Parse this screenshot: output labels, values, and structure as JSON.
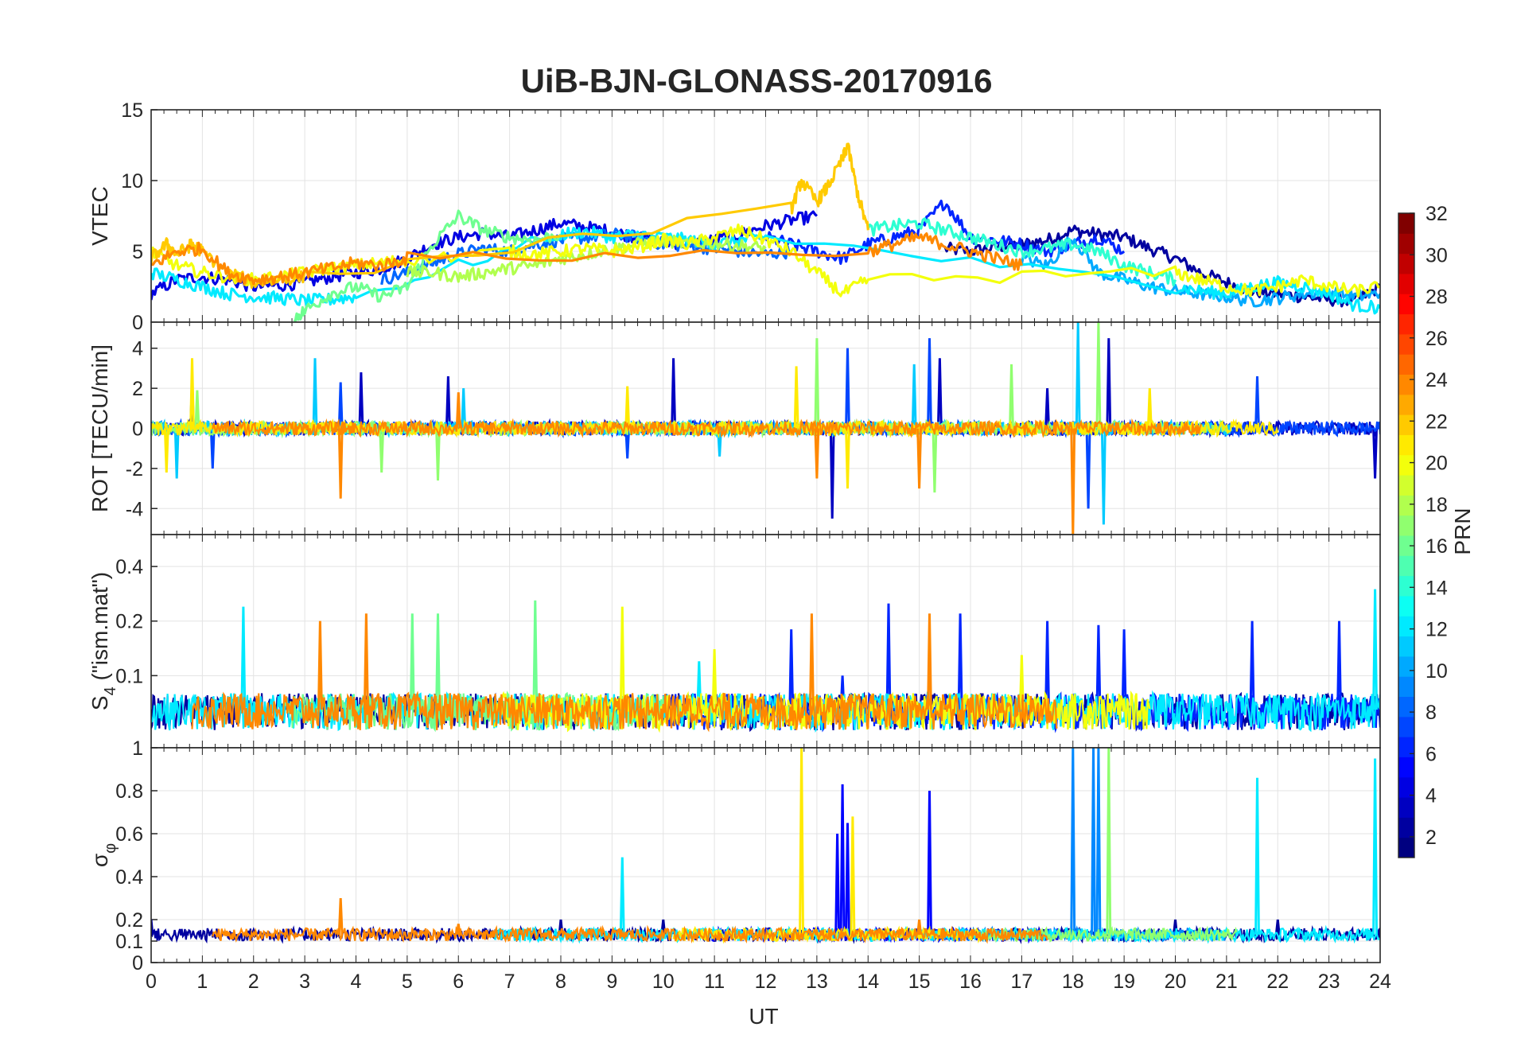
{
  "figure": {
    "title": "UiB-BJN-GLONASS-20170916",
    "xlabel": "UT",
    "x_ticks": [
      "0",
      "1",
      "2",
      "3",
      "4",
      "5",
      "6",
      "7",
      "8",
      "9",
      "10",
      "11",
      "12",
      "13",
      "14",
      "15",
      "16",
      "17",
      "18",
      "19",
      "20",
      "21",
      "22",
      "23",
      "24"
    ]
  },
  "colorbar": {
    "label": "PRN",
    "range": [
      1,
      32
    ],
    "ticks": [
      "2",
      "4",
      "6",
      "8",
      "10",
      "12",
      "14",
      "16",
      "18",
      "20",
      "22",
      "24",
      "26",
      "28",
      "30",
      "32"
    ],
    "colormap": "jet",
    "levels": 32
  },
  "chart_data": [
    {
      "type": "line",
      "panel": "vtec",
      "ylabel": "VTEC",
      "xlim": [
        0,
        24
      ],
      "ylim": [
        0,
        15
      ],
      "y_ticks": [
        "0",
        "5",
        "10",
        "15"
      ],
      "grid": true,
      "note_series": "one line per GLONASS PRN, colored by colorbar",
      "series": [
        {
          "prn": 2,
          "x": [
            15.5,
            16,
            16.5,
            17,
            17.5,
            18,
            18.5,
            19,
            19.5,
            20,
            20.5,
            21,
            21.5,
            22,
            22.5,
            23,
            23.5,
            24
          ],
          "y": [
            5.2,
            5.0,
            5.3,
            5.5,
            5.8,
            6.5,
            6.2,
            6.0,
            5.2,
            4.5,
            3.5,
            2.8,
            2.2,
            2.0,
            1.8,
            1.6,
            1.5,
            2.5
          ]
        },
        {
          "prn": 4,
          "x": [
            0,
            0.5,
            1,
            1.5,
            2,
            2.5,
            3,
            3.5,
            4,
            4.5,
            5,
            5.5,
            6,
            6.5,
            7,
            7.5,
            8,
            8.5,
            9,
            9.5,
            10,
            10.5,
            11,
            11.5,
            12,
            12.5,
            13
          ],
          "y": [
            2.0,
            3.0,
            3.2,
            3.0,
            2.5,
            2.6,
            2.8,
            3.2,
            3.5,
            3.8,
            4.5,
            5.5,
            6.0,
            6.3,
            6.0,
            6.5,
            7.0,
            6.7,
            6.4,
            6.0,
            5.7,
            5.5,
            5.8,
            6.2,
            6.8,
            7.2,
            7.5
          ]
        },
        {
          "prn": 6,
          "x": [
            12,
            12.5,
            13,
            13.5,
            14,
            14.5,
            15,
            15.5,
            16,
            16.5,
            17,
            17.5,
            18,
            18.5,
            19
          ],
          "y": [
            6.0,
            5.5,
            5.0,
            4.5,
            5.5,
            6.0,
            6.5,
            8.5,
            6.0,
            5.8,
            5.5,
            5.0,
            5.5,
            6.0,
            5.0
          ]
        },
        {
          "prn": 8,
          "x": [
            4.5,
            5,
            5.5,
            6,
            6.5,
            7,
            7.5,
            8,
            8.5,
            9,
            9.5,
            10,
            10.5,
            11,
            11.5,
            12,
            12.5
          ],
          "y": [
            3.0,
            3.5,
            4.2,
            4.8,
            5.2,
            5.0,
            5.5,
            5.8,
            6.0,
            6.2,
            6.0,
            5.5,
            5.4,
            5.2,
            5.0,
            4.8,
            5.0
          ]
        },
        {
          "prn": 10,
          "x": [
            17,
            17.5,
            18,
            18.5,
            19,
            19.5,
            20,
            20.5,
            21,
            21.5,
            22,
            22.5,
            23,
            23.5,
            24
          ],
          "y": [
            4.5,
            4.0,
            6.0,
            3.5,
            3.0,
            2.5,
            2.2,
            2.0,
            1.8,
            1.5,
            1.7,
            2.0,
            2.2,
            1.8,
            2.0
          ]
        },
        {
          "prn": 12,
          "x": [
            0,
            0.5,
            1,
            1.5,
            2,
            2.5,
            3,
            3.5,
            4,
            8,
            8.5,
            9,
            9.5,
            10,
            10.5,
            11,
            11.5,
            12,
            20,
            20.5,
            21,
            21.5,
            22,
            22.5,
            23,
            23.5,
            24
          ],
          "y": [
            3.5,
            3.0,
            2.5,
            2.0,
            1.8,
            1.7,
            1.5,
            1.6,
            1.8,
            6.2,
            6.4,
            6.0,
            6.2,
            6.0,
            5.8,
            5.5,
            5.8,
            6.0,
            2.5,
            2.2,
            2.0,
            2.5,
            2.8,
            2.5,
            2.0,
            1.2,
            1.0
          ]
        },
        {
          "prn": 14,
          "x": [
            14,
            14.5,
            15,
            15.5,
            16,
            16.5,
            17,
            17.5,
            18,
            18.5,
            19,
            19.5,
            20
          ],
          "y": [
            6.5,
            6.8,
            7.0,
            6.5,
            6.0,
            5.5,
            5.0,
            5.2,
            5.5,
            5.0,
            4.0,
            3.5,
            3.0
          ]
        },
        {
          "prn": 16,
          "x": [
            2.8,
            3,
            3.5,
            4,
            4.5,
            5,
            5.5,
            6,
            6.5,
            7,
            7.5,
            8
          ],
          "y": [
            0.3,
            0.8,
            2.0,
            2.5,
            1.8,
            2.5,
            5.5,
            7.5,
            6.5,
            6.0,
            5.8,
            6.2
          ]
        },
        {
          "prn": 18,
          "x": [
            5,
            5.5,
            6,
            6.5,
            7,
            7.5,
            8,
            8.5,
            9,
            9.5,
            10,
            10.5,
            11,
            11.5,
            12
          ],
          "y": [
            3.5,
            3.5,
            3.2,
            3.5,
            3.8,
            4.0,
            4.5,
            4.8,
            5.2,
            5.5,
            5.8,
            5.5,
            5.6,
            5.4,
            5.2
          ]
        },
        {
          "prn": 20,
          "x": [
            0,
            0.5,
            1,
            1.5,
            2,
            2.5,
            3,
            3.5,
            4,
            4.5,
            5,
            7,
            7.5,
            8,
            8.5,
            9,
            9.5,
            10,
            10.5,
            11,
            11.5,
            12,
            12.5,
            13,
            13.5,
            14,
            20,
            20.5,
            21,
            21.5,
            22,
            22.5,
            23,
            23.5,
            24
          ],
          "y": [
            5.0,
            4.0,
            3.5,
            3.2,
            3.0,
            3.2,
            3.5,
            3.8,
            4.0,
            4.2,
            4.4,
            5.0,
            4.8,
            5.0,
            5.2,
            5.0,
            5.3,
            5.8,
            5.5,
            6.0,
            6.5,
            5.8,
            5.0,
            3.5,
            2.0,
            3.0,
            3.5,
            3.0,
            2.5,
            2.2,
            2.5,
            3.0,
            2.5,
            2.2,
            2.5
          ]
        },
        {
          "prn": 22,
          "x": [
            0,
            0.3,
            0.5,
            0.8,
            1,
            1.5,
            2,
            2.5,
            3,
            12.5,
            12.7,
            13,
            13.2,
            13.5,
            13.6,
            13.8,
            14
          ],
          "y": [
            4.5,
            5.5,
            4.8,
            5.5,
            5.0,
            3.5,
            2.8,
            3.0,
            3.2,
            8.0,
            10.0,
            8.5,
            9.5,
            11.5,
            12.5,
            9.0,
            6.5
          ]
        },
        {
          "prn": 24,
          "x": [
            0,
            0.5,
            1,
            1.5,
            2,
            2.5,
            3,
            3.5,
            4,
            4.5,
            5,
            14,
            14.5,
            15,
            15.5,
            16,
            16.5,
            17
          ],
          "y": [
            4.0,
            5.0,
            5.2,
            3.5,
            3.0,
            3.2,
            3.5,
            3.8,
            4.2,
            4.0,
            4.5,
            5.0,
            5.5,
            6.0,
            5.5,
            5.0,
            4.5,
            4.0
          ]
        }
      ]
    },
    {
      "type": "line",
      "panel": "rot",
      "ylabel": "ROT [TECU/min]",
      "xlim": [
        0,
        24
      ],
      "ylim": [
        -5.3,
        5.3
      ],
      "y_ticks": [
        "-4",
        "-2",
        "0",
        "2",
        "4"
      ],
      "grid": true,
      "note_series": "noisy around zero with bursts near 0-1, 3-6, 12.5-16, 17.5-19 UT",
      "series": [
        {
          "prn": 3,
          "x": [
            0.8,
            4.1,
            5.8,
            10.2,
            13.3,
            15.4,
            17.5,
            18.7,
            23.9
          ],
          "y": [
            2.5,
            2.8,
            2.6,
            3.5,
            -4.5,
            3.5,
            2.0,
            4.5,
            -2.5
          ]
        },
        {
          "prn": 7,
          "x": [
            1.2,
            3.7,
            9.3,
            13.6,
            15.2,
            18.3,
            21.6
          ],
          "y": [
            -2.0,
            2.3,
            -1.5,
            4.0,
            4.5,
            -4.0,
            2.6
          ]
        },
        {
          "prn": 11,
          "x": [
            0.5,
            3.2,
            6.1,
            11.1,
            14.9,
            18.1,
            18.6
          ],
          "y": [
            -2.5,
            3.5,
            2.0,
            -1.4,
            3.2,
            5.3,
            -4.8
          ]
        },
        {
          "prn": 17,
          "x": [
            0.9,
            4.5,
            5.6,
            13.0,
            15.3,
            16.8,
            18.5
          ],
          "y": [
            1.9,
            -2.2,
            -2.6,
            4.5,
            -3.2,
            3.2,
            5.3
          ]
        },
        {
          "prn": 21,
          "x": [
            0.3,
            0.8,
            9.3,
            12.6,
            13.6,
            19.5
          ],
          "y": [
            -2.2,
            3.5,
            2.1,
            3.1,
            -3.0,
            2.0
          ]
        },
        {
          "prn": 24,
          "x": [
            3.7,
            6.0,
            13.0,
            15.0,
            18.0
          ],
          "y": [
            -3.5,
            1.8,
            -2.5,
            -3.0,
            -5.3
          ]
        }
      ]
    },
    {
      "type": "line",
      "panel": "s4",
      "ylabel": "S4 (\"ism.mat\")",
      "ylabel_main": "S",
      "ylabel_sub": "4",
      "ylabel_rest": " (\"ism.mat\")",
      "xlim": [
        0,
        24
      ],
      "ylim": [
        0.04,
        0.6
      ],
      "y_ticks": [
        "0.1",
        "0.2",
        "0.4"
      ],
      "y_scale": "log",
      "grid": true,
      "series": [
        {
          "prn": 2,
          "x": [
            0,
            2,
            4,
            6,
            8,
            10,
            12,
            14,
            16,
            18,
            20,
            22,
            24
          ],
          "y": [
            0.06,
            0.06,
            0.055,
            0.055,
            0.06,
            0.06,
            0.06,
            0.06,
            0.06,
            0.07,
            0.07,
            0.06,
            0.06
          ]
        },
        {
          "prn": 6,
          "x": [
            12.5,
            13.5,
            14.4,
            15.8,
            17.5,
            18.5,
            19.0,
            21.5,
            23.2
          ],
          "y": [
            0.18,
            0.1,
            0.25,
            0.22,
            0.2,
            0.19,
            0.18,
            0.2,
            0.2
          ]
        },
        {
          "prn": 12,
          "x": [
            1.8,
            10.7,
            23.9
          ],
          "y": [
            0.24,
            0.12,
            0.3
          ]
        },
        {
          "prn": 16,
          "x": [
            5.1,
            5.6,
            7.5
          ],
          "y": [
            0.22,
            0.22,
            0.26
          ]
        },
        {
          "prn": 20,
          "x": [
            9.2,
            11.0,
            17.0
          ],
          "y": [
            0.24,
            0.14,
            0.13
          ]
        },
        {
          "prn": 24,
          "x": [
            3.3,
            4.2,
            12.9,
            15.2
          ],
          "y": [
            0.2,
            0.22,
            0.22,
            0.22
          ]
        }
      ]
    },
    {
      "type": "line",
      "panel": "sigma_phi",
      "ylabel": "σφ",
      "ylabel_main": "σ",
      "ylabel_sub": "φ",
      "xlim": [
        0,
        24
      ],
      "ylim": [
        0,
        1
      ],
      "y_ticks": [
        "0",
        "0.1",
        "0.2",
        "0.4",
        "0.6",
        "0.8",
        "1"
      ],
      "grid": true,
      "series": [
        {
          "prn": 2,
          "x": [
            0,
            2,
            4,
            6,
            8,
            10,
            12,
            14,
            16,
            18,
            20,
            22,
            24
          ],
          "y": [
            0.2,
            0.15,
            0.14,
            0.15,
            0.2,
            0.2,
            0.15,
            0.14,
            0.15,
            0.12,
            0.2,
            0.2,
            0.16
          ]
        },
        {
          "prn": 5,
          "x": [
            13.4,
            13.5,
            13.6,
            15.2
          ],
          "y": [
            0.6,
            0.83,
            0.65,
            0.8
          ]
        },
        {
          "prn": 9,
          "x": [
            18.0,
            18.4,
            18.5
          ],
          "y": [
            1.0,
            1.0,
            1.0
          ]
        },
        {
          "prn": 12,
          "x": [
            9.2,
            21.6,
            23.9
          ],
          "y": [
            0.49,
            0.86,
            0.95
          ]
        },
        {
          "prn": 17,
          "x": [
            18.7
          ],
          "y": [
            1.0
          ]
        },
        {
          "prn": 21,
          "x": [
            12.7,
            13.7
          ],
          "y": [
            1.0,
            0.68
          ]
        },
        {
          "prn": 24,
          "x": [
            3.7,
            6.0,
            15.0
          ],
          "y": [
            0.3,
            0.18,
            0.2
          ]
        }
      ]
    }
  ]
}
